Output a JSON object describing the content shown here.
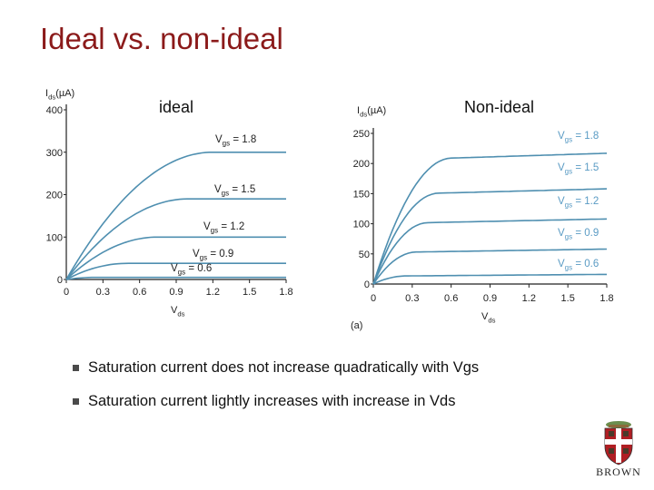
{
  "slide": {
    "title": "Ideal vs. non-ideal",
    "bullets": [
      "Saturation current does not increase quadratically with Vgs",
      "Saturation current lightly increases with increase in Vds"
    ],
    "logo_text": "BROWN"
  },
  "colors": {
    "title": "#8b1a1a",
    "curve": "#4f8fb0",
    "axis": "#222222",
    "label": "#5a9bc4"
  },
  "chart_data": [
    {
      "type": "line",
      "title": "ideal",
      "ylabel_main": "I",
      "ylabel_sub": "ds",
      "ylabel_unit": "(µA)",
      "xlabel_main": "V",
      "xlabel_sub": "ds",
      "xlim": [
        0,
        1.8
      ],
      "ylim": [
        0,
        400
      ],
      "xticks": [
        "0",
        "0.3",
        "0.6",
        "0.9",
        "1.2",
        "1.5",
        "1.8"
      ],
      "yticks": [
        "0",
        "100",
        "200",
        "300",
        "400"
      ],
      "series": [
        {
          "label_main": "V",
          "label_sub": "gs",
          "label_value": " = 1.8",
          "vgs": 1.8,
          "isat": 300,
          "vsat": 1.2
        },
        {
          "label_main": "V",
          "label_sub": "gs",
          "label_value": " = 1.5",
          "vgs": 1.5,
          "isat": 190,
          "vsat": 1.0
        },
        {
          "label_main": "V",
          "label_sub": "gs",
          "label_value": " = 1.2",
          "vgs": 1.2,
          "isat": 100,
          "vsat": 0.75
        },
        {
          "label_main": "V",
          "label_sub": "gs",
          "label_value": " = 0.9",
          "vgs": 0.9,
          "isat": 38,
          "vsat": 0.5
        },
        {
          "label_main": "V",
          "label_sub": "gs",
          "label_value": " = 0.6",
          "vgs": 0.6,
          "isat": 5,
          "vsat": 0.25
        }
      ]
    },
    {
      "type": "line",
      "title": "Non-ideal",
      "ylabel_main": "I",
      "ylabel_sub": "ds",
      "ylabel_unit": "(µA)",
      "xlabel_main": "V",
      "xlabel_sub": "ds",
      "caption": "(a)",
      "xlim": [
        0,
        1.8
      ],
      "ylim": [
        0,
        250
      ],
      "xticks": [
        "0",
        "0.3",
        "0.6",
        "0.9",
        "1.2",
        "1.5",
        "1.8"
      ],
      "yticks": [
        "0",
        "50",
        "100",
        "150",
        "200",
        "250"
      ],
      "series": [
        {
          "label_main": "V",
          "label_sub": "gs",
          "label_value": " = 1.8",
          "vgs": 1.8,
          "isat": 205,
          "slope": 12,
          "vsat": 0.6
        },
        {
          "label_main": "V",
          "label_sub": "gs",
          "label_value": " = 1.5",
          "vgs": 1.5,
          "isat": 148,
          "slope": 10,
          "vsat": 0.5
        },
        {
          "label_main": "V",
          "label_sub": "gs",
          "label_value": " = 1.2",
          "vgs": 1.2,
          "isat": 100,
          "slope": 8,
          "vsat": 0.42
        },
        {
          "label_main": "V",
          "label_sub": "gs",
          "label_value": " = 0.9",
          "vgs": 0.9,
          "isat": 52,
          "slope": 6,
          "vsat": 0.33
        },
        {
          "label_main": "V",
          "label_sub": "gs",
          "label_value": " = 0.6",
          "vgs": 0.6,
          "isat": 13,
          "slope": 3,
          "vsat": 0.25
        }
      ]
    }
  ]
}
